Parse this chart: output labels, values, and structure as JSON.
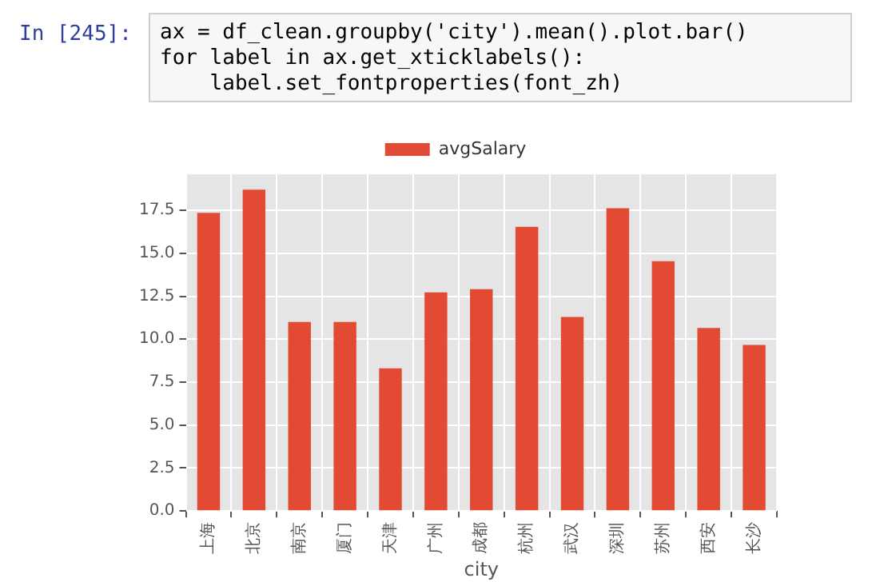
{
  "chart_data": {
    "type": "bar",
    "xlabel": "city",
    "categories": [
      "上海",
      "北京",
      "南京",
      "厦门",
      "天津",
      "广州",
      "成都",
      "杭州",
      "武汉",
      "深圳",
      "苏州",
      "西安",
      "长沙"
    ],
    "series": [
      {
        "name": "avgSalary",
        "color": "#e24a33",
        "values": [
          17.35,
          18.7,
          11.0,
          11.0,
          8.3,
          12.73,
          12.91,
          16.54,
          11.29,
          17.62,
          14.54,
          10.65,
          9.66
        ]
      }
    ],
    "ylim": [
      0,
      19.6
    ],
    "yticks": [
      {
        "value": 0,
        "label": "0.0"
      },
      {
        "value": 2.5,
        "label": "2.5"
      },
      {
        "value": 5,
        "label": "5.0"
      },
      {
        "value": 7.5,
        "label": "7.5"
      },
      {
        "value": 10,
        "label": "10.0"
      },
      {
        "value": 12.5,
        "label": "12.5"
      },
      {
        "value": 15,
        "label": "15.0"
      },
      {
        "value": 17.5,
        "label": "17.5"
      }
    ],
    "grid": true,
    "legend": "top",
    "annotations": [
      "In [245]:",
      "ax = df_clean.groupby('city').mean().plot.bar()",
      "for label in ax.get_xticklabels():",
      "    label.set_fontproperties(font_zh)"
    ]
  }
}
